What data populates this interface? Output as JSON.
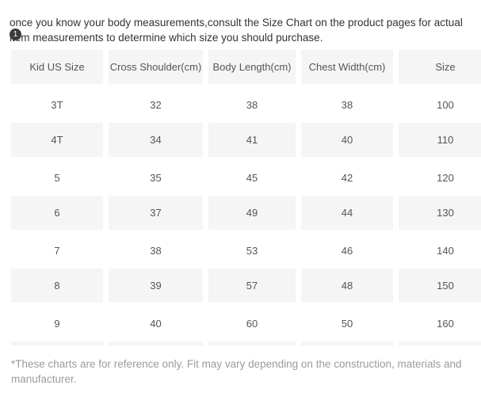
{
  "page": {
    "intro_text": "once you know your body measurements,consult the Size Chart on the product pages for actual item measurements to determine which size you should purchase.",
    "step_badge": "1",
    "footnote_text": "*These charts are for reference only. Fit may vary depending on the construction, materials and manufacturer."
  },
  "size_chart": {
    "type": "table",
    "columns": [
      "Kid US Size",
      "Cross Shoulder(cm)",
      "Body Length(cm)",
      "Chest Width(cm)",
      "Size"
    ],
    "rows": [
      [
        "3T",
        "32",
        "38",
        "38",
        "100"
      ],
      [
        "4T",
        "34",
        "41",
        "40",
        "110"
      ],
      [
        "5",
        "35",
        "45",
        "42",
        "120"
      ],
      [
        "6",
        "37",
        "49",
        "44",
        "130"
      ],
      [
        "7",
        "38",
        "53",
        "46",
        "140"
      ],
      [
        "8",
        "39",
        "57",
        "48",
        "150"
      ],
      [
        "9",
        "40",
        "60",
        "50",
        "160"
      ]
    ]
  },
  "colors": {
    "row_shaded": "#f5f5f5",
    "table_text": "#555555",
    "intro_text": "#333333",
    "footnote_text": "#9b9b9b",
    "badge_bg": "#3b3b3b"
  }
}
